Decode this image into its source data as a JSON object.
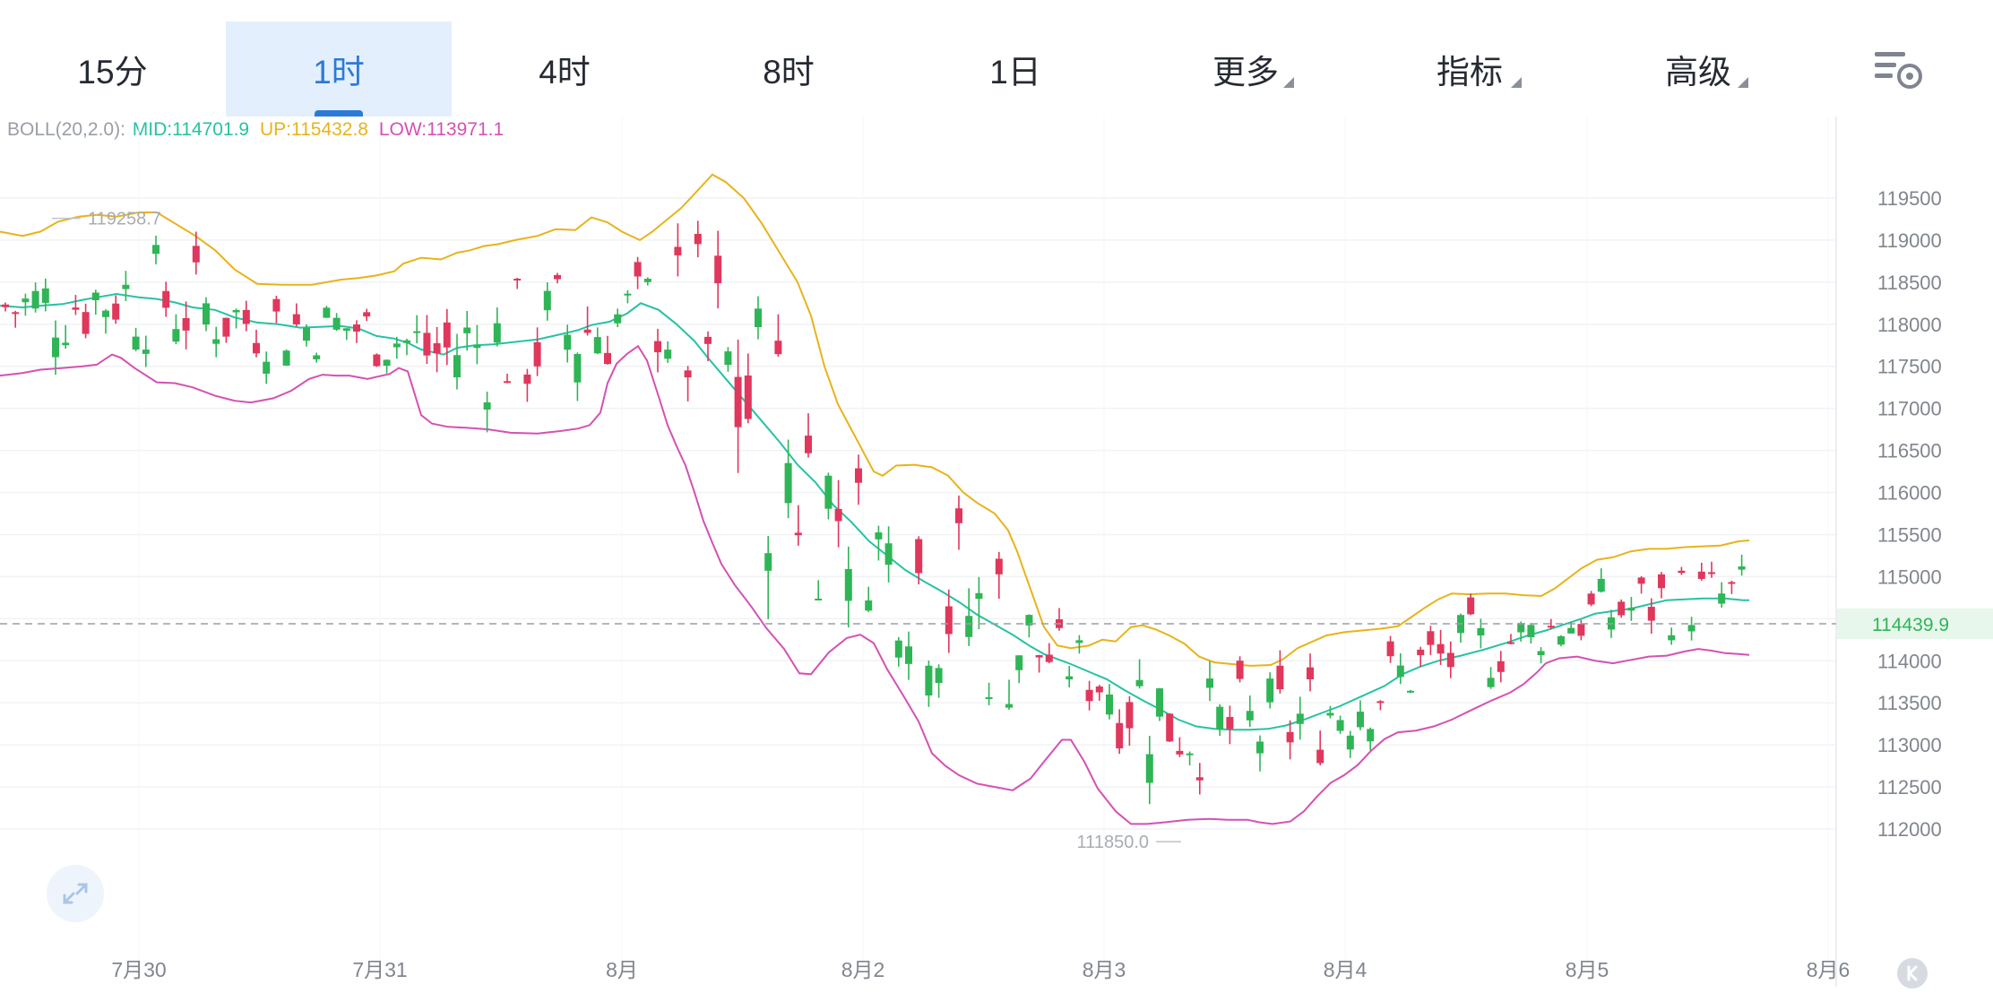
{
  "tabs": [
    {
      "label": "15分",
      "name": "tab-15m"
    },
    {
      "label": "1时",
      "name": "tab-1h",
      "active": true
    },
    {
      "label": "4时",
      "name": "tab-4h"
    },
    {
      "label": "8时",
      "name": "tab-8h"
    },
    {
      "label": "1日",
      "name": "tab-1d"
    },
    {
      "label": "更多",
      "name": "tab-more",
      "dropdown": true
    },
    {
      "label": "指标",
      "name": "tab-indicators",
      "dropdown": true
    },
    {
      "label": "高级",
      "name": "tab-advanced",
      "dropdown": true
    }
  ],
  "toolbar": {
    "settings_icon": "chart-settings-icon"
  },
  "indicator": {
    "name": "BOLL(20,2.0):",
    "mid": "MID:114701.9",
    "up": "UP:115432.8",
    "low": "LOW:113971.1",
    "colors": {
      "name": "#9a9ea6",
      "mid": "#26c2a4",
      "up": "#e8b31a",
      "low": "#d451b4"
    }
  },
  "chart_data": {
    "type": "candlestick",
    "x_labels": [
      "7月30",
      "7月31",
      "8月",
      "8月2",
      "8月3",
      "8月4",
      "8月5",
      "8月6"
    ],
    "y_ticks": [
      112000,
      112500,
      113000,
      113500,
      114000,
      114500,
      115000,
      115500,
      116000,
      116500,
      117000,
      117500,
      118000,
      118500,
      119000,
      119500
    ],
    "y_tick_labels": [
      "112000",
      "112500",
      "113000",
      "113500",
      "114000",
      "",
      "115000",
      "115500",
      "116000",
      "116500",
      "117000",
      "117500",
      "118000",
      "118500",
      "119000",
      "119500"
    ],
    "ylim": [
      111650,
      120200
    ],
    "last_price": 114439.9,
    "last_price_label": "114439.9",
    "high_marker": {
      "value": 119258.7,
      "label": "119258.7"
    },
    "low_marker": {
      "value": 111850.0,
      "label": "111850.0"
    },
    "colors": {
      "up": "#2fb556",
      "down": "#e0375c",
      "mid": "#26c2a4",
      "upper": "#e8b31a",
      "lower": "#d451b4"
    },
    "boll_up": [
      [
        0,
        119100
      ],
      [
        25,
        119050
      ],
      [
        45,
        119100
      ],
      [
        65,
        119220
      ],
      [
        88,
        119280
      ],
      [
        108,
        119300
      ],
      [
        130,
        119280
      ],
      [
        155,
        119330
      ],
      [
        175,
        119330
      ],
      [
        195,
        119200
      ],
      [
        218,
        119050
      ],
      [
        240,
        118880
      ],
      [
        262,
        118650
      ],
      [
        287,
        118480
      ],
      [
        315,
        118470
      ],
      [
        348,
        118470
      ],
      [
        380,
        118530
      ],
      [
        400,
        118550
      ],
      [
        420,
        118580
      ],
      [
        440,
        118630
      ],
      [
        450,
        118720
      ],
      [
        470,
        118790
      ],
      [
        492,
        118770
      ],
      [
        510,
        118850
      ],
      [
        525,
        118880
      ],
      [
        540,
        118930
      ],
      [
        555,
        118950
      ],
      [
        575,
        119000
      ],
      [
        600,
        119050
      ],
      [
        620,
        119130
      ],
      [
        642,
        119120
      ],
      [
        660,
        119270
      ],
      [
        678,
        119210
      ],
      [
        694,
        119100
      ],
      [
        714,
        119000
      ],
      [
        728,
        119100
      ],
      [
        745,
        119250
      ],
      [
        760,
        119380
      ],
      [
        775,
        119550
      ],
      [
        795,
        119780
      ],
      [
        810,
        119690
      ],
      [
        830,
        119500
      ],
      [
        850,
        119200
      ],
      [
        870,
        118850
      ],
      [
        890,
        118500
      ],
      [
        905,
        118100
      ],
      [
        920,
        117500
      ],
      [
        935,
        117050
      ],
      [
        950,
        116750
      ],
      [
        965,
        116450
      ],
      [
        975,
        116250
      ],
      [
        985,
        116200
      ],
      [
        1000,
        116320
      ],
      [
        1020,
        116330
      ],
      [
        1040,
        116300
      ],
      [
        1058,
        116200
      ],
      [
        1075,
        116000
      ],
      [
        1090,
        115880
      ],
      [
        1110,
        115750
      ],
      [
        1125,
        115550
      ],
      [
        1135,
        115300
      ],
      [
        1145,
        115000
      ],
      [
        1155,
        114700
      ],
      [
        1165,
        114400
      ],
      [
        1180,
        114180
      ],
      [
        1195,
        114150
      ],
      [
        1215,
        114180
      ],
      [
        1230,
        114250
      ],
      [
        1245,
        114230
      ],
      [
        1262,
        114400
      ],
      [
        1275,
        114420
      ],
      [
        1290,
        114370
      ],
      [
        1305,
        114300
      ],
      [
        1322,
        114200
      ],
      [
        1338,
        114050
      ],
      [
        1355,
        113980
      ],
      [
        1375,
        113960
      ],
      [
        1395,
        113940
      ],
      [
        1418,
        113950
      ],
      [
        1432,
        114020
      ],
      [
        1448,
        114150
      ],
      [
        1465,
        114230
      ],
      [
        1480,
        114300
      ],
      [
        1500,
        114340
      ],
      [
        1520,
        114360
      ],
      [
        1540,
        114380
      ],
      [
        1560,
        114410
      ],
      [
        1575,
        114520
      ],
      [
        1590,
        114630
      ],
      [
        1605,
        114730
      ],
      [
        1620,
        114800
      ],
      [
        1640,
        114790
      ],
      [
        1660,
        114800
      ],
      [
        1680,
        114800
      ],
      [
        1700,
        114780
      ],
      [
        1720,
        114770
      ],
      [
        1735,
        114860
      ],
      [
        1750,
        114980
      ],
      [
        1765,
        115100
      ],
      [
        1782,
        115200
      ],
      [
        1800,
        115230
      ],
      [
        1820,
        115300
      ],
      [
        1840,
        115330
      ],
      [
        1860,
        115330
      ],
      [
        1880,
        115350
      ],
      [
        1900,
        115360
      ],
      [
        1920,
        115370
      ],
      [
        1940,
        115420
      ],
      [
        1952,
        115430
      ]
    ],
    "boll_mid": [
      [
        0,
        118220
      ],
      [
        25,
        118200
      ],
      [
        45,
        118220
      ],
      [
        70,
        118240
      ],
      [
        92,
        118290
      ],
      [
        108,
        118320
      ],
      [
        130,
        118360
      ],
      [
        155,
        118320
      ],
      [
        175,
        118300
      ],
      [
        195,
        118260
      ],
      [
        215,
        118200
      ],
      [
        240,
        118170
      ],
      [
        262,
        118080
      ],
      [
        287,
        118020
      ],
      [
        310,
        118000
      ],
      [
        335,
        117960
      ],
      [
        360,
        117970
      ],
      [
        380,
        117980
      ],
      [
        400,
        117950
      ],
      [
        420,
        117860
      ],
      [
        440,
        117830
      ],
      [
        455,
        117780
      ],
      [
        470,
        117700
      ],
      [
        495,
        117640
      ],
      [
        510,
        117720
      ],
      [
        530,
        117750
      ],
      [
        550,
        117760
      ],
      [
        575,
        117790
      ],
      [
        600,
        117820
      ],
      [
        625,
        117880
      ],
      [
        645,
        117930
      ],
      [
        660,
        117990
      ],
      [
        680,
        118030
      ],
      [
        700,
        118130
      ],
      [
        715,
        118250
      ],
      [
        735,
        118170
      ],
      [
        755,
        118000
      ],
      [
        775,
        117800
      ],
      [
        790,
        117600
      ],
      [
        810,
        117350
      ],
      [
        830,
        117100
      ],
      [
        850,
        116850
      ],
      [
        870,
        116600
      ],
      [
        890,
        116330
      ],
      [
        910,
        116120
      ],
      [
        930,
        115850
      ],
      [
        950,
        115650
      ],
      [
        970,
        115420
      ],
      [
        990,
        115250
      ],
      [
        1010,
        115080
      ],
      [
        1030,
        114950
      ],
      [
        1050,
        114830
      ],
      [
        1070,
        114700
      ],
      [
        1090,
        114550
      ],
      [
        1110,
        114430
      ],
      [
        1130,
        114310
      ],
      [
        1150,
        114170
      ],
      [
        1165,
        114080
      ],
      [
        1180,
        114020
      ],
      [
        1195,
        113960
      ],
      [
        1215,
        113870
      ],
      [
        1235,
        113780
      ],
      [
        1255,
        113650
      ],
      [
        1275,
        113530
      ],
      [
        1295,
        113420
      ],
      [
        1315,
        113300
      ],
      [
        1335,
        113220
      ],
      [
        1355,
        113190
      ],
      [
        1375,
        113180
      ],
      [
        1395,
        113180
      ],
      [
        1415,
        113190
      ],
      [
        1435,
        113230
      ],
      [
        1455,
        113300
      ],
      [
        1475,
        113380
      ],
      [
        1495,
        113460
      ],
      [
        1520,
        113580
      ],
      [
        1545,
        113700
      ],
      [
        1565,
        113840
      ],
      [
        1585,
        113930
      ],
      [
        1605,
        114000
      ],
      [
        1630,
        114060
      ],
      [
        1655,
        114130
      ],
      [
        1680,
        114210
      ],
      [
        1705,
        114300
      ],
      [
        1725,
        114360
      ],
      [
        1745,
        114430
      ],
      [
        1765,
        114500
      ],
      [
        1780,
        114560
      ],
      [
        1800,
        114590
      ],
      [
        1820,
        114620
      ],
      [
        1840,
        114670
      ],
      [
        1860,
        114720
      ],
      [
        1880,
        114730
      ],
      [
        1900,
        114740
      ],
      [
        1925,
        114740
      ],
      [
        1945,
        114720
      ],
      [
        1952,
        114720
      ]
    ],
    "boll_low": [
      [
        0,
        117390
      ],
      [
        25,
        117420
      ],
      [
        45,
        117460
      ],
      [
        70,
        117480
      ],
      [
        92,
        117500
      ],
      [
        108,
        117520
      ],
      [
        125,
        117640
      ],
      [
        135,
        117600
      ],
      [
        150,
        117480
      ],
      [
        175,
        117310
      ],
      [
        195,
        117300
      ],
      [
        215,
        117250
      ],
      [
        240,
        117150
      ],
      [
        262,
        117090
      ],
      [
        280,
        117070
      ],
      [
        305,
        117120
      ],
      [
        325,
        117210
      ],
      [
        345,
        117350
      ],
      [
        360,
        117400
      ],
      [
        375,
        117390
      ],
      [
        390,
        117390
      ],
      [
        410,
        117350
      ],
      [
        435,
        117410
      ],
      [
        445,
        117480
      ],
      [
        455,
        117440
      ],
      [
        470,
        116920
      ],
      [
        482,
        116820
      ],
      [
        500,
        116780
      ],
      [
        520,
        116770
      ],
      [
        545,
        116750
      ],
      [
        570,
        116710
      ],
      [
        600,
        116700
      ],
      [
        625,
        116730
      ],
      [
        645,
        116760
      ],
      [
        658,
        116800
      ],
      [
        670,
        116950
      ],
      [
        678,
        117300
      ],
      [
        688,
        117530
      ],
      [
        700,
        117650
      ],
      [
        712,
        117740
      ],
      [
        722,
        117570
      ],
      [
        735,
        117140
      ],
      [
        745,
        116800
      ],
      [
        755,
        116550
      ],
      [
        765,
        116320
      ],
      [
        775,
        116000
      ],
      [
        785,
        115660
      ],
      [
        795,
        115400
      ],
      [
        805,
        115150
      ],
      [
        820,
        114900
      ],
      [
        838,
        114650
      ],
      [
        855,
        114390
      ],
      [
        875,
        114140
      ],
      [
        892,
        113850
      ],
      [
        905,
        113840
      ],
      [
        925,
        114100
      ],
      [
        945,
        114270
      ],
      [
        960,
        114310
      ],
      [
        975,
        114210
      ],
      [
        990,
        113900
      ],
      [
        1010,
        113550
      ],
      [
        1025,
        113280
      ],
      [
        1040,
        112900
      ],
      [
        1055,
        112750
      ],
      [
        1070,
        112640
      ],
      [
        1090,
        112540
      ],
      [
        1110,
        112500
      ],
      [
        1130,
        112460
      ],
      [
        1150,
        112600
      ],
      [
        1165,
        112800
      ],
      [
        1185,
        113060
      ],
      [
        1195,
        113060
      ],
      [
        1210,
        112800
      ],
      [
        1225,
        112480
      ],
      [
        1245,
        112210
      ],
      [
        1262,
        112060
      ],
      [
        1280,
        112060
      ],
      [
        1300,
        112080
      ],
      [
        1325,
        112110
      ],
      [
        1350,
        112120
      ],
      [
        1370,
        112110
      ],
      [
        1392,
        112110
      ],
      [
        1405,
        112080
      ],
      [
        1420,
        112060
      ],
      [
        1440,
        112090
      ],
      [
        1455,
        112210
      ],
      [
        1470,
        112390
      ],
      [
        1485,
        112550
      ],
      [
        1500,
        112640
      ],
      [
        1515,
        112760
      ],
      [
        1530,
        112930
      ],
      [
        1545,
        113070
      ],
      [
        1560,
        113150
      ],
      [
        1580,
        113170
      ],
      [
        1600,
        113220
      ],
      [
        1620,
        113300
      ],
      [
        1645,
        113430
      ],
      [
        1665,
        113530
      ],
      [
        1685,
        113620
      ],
      [
        1700,
        113720
      ],
      [
        1715,
        113860
      ],
      [
        1725,
        113970
      ],
      [
        1740,
        114030
      ],
      [
        1760,
        114050
      ],
      [
        1780,
        114000
      ],
      [
        1800,
        113970
      ],
      [
        1820,
        114010
      ],
      [
        1840,
        114050
      ],
      [
        1860,
        114060
      ],
      [
        1880,
        114110
      ],
      [
        1895,
        114140
      ],
      [
        1910,
        114120
      ],
      [
        1925,
        114090
      ],
      [
        1940,
        114080
      ],
      [
        1952,
        114070
      ]
    ]
  },
  "widgets": {
    "expand_icon": "expand-icon",
    "reset_icon": "reset-view-icon"
  }
}
